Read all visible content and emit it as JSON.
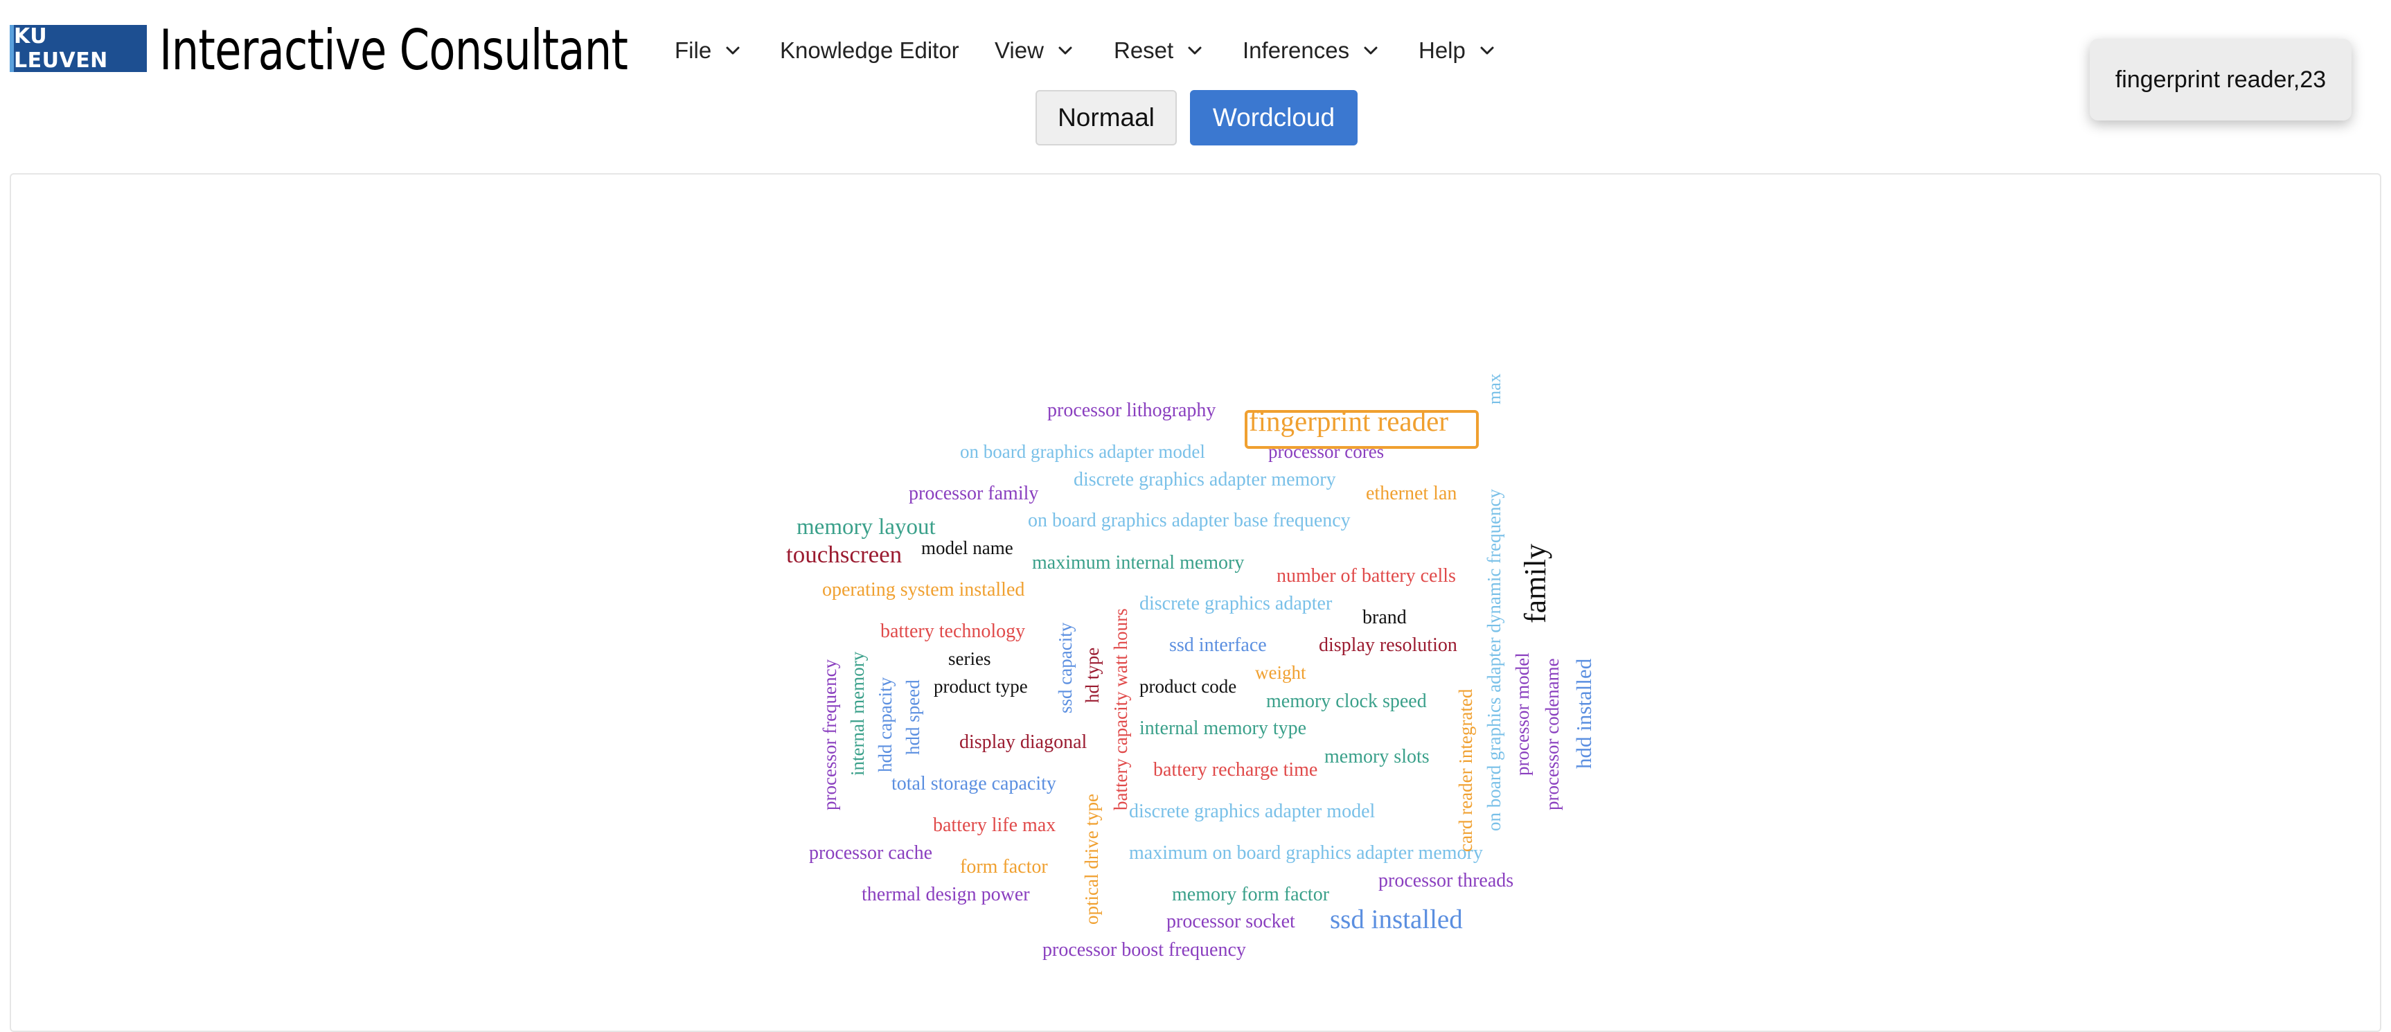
{
  "header": {
    "logo_text": "KU LEUVEN",
    "app_title": "Interactive Consultant"
  },
  "menu": {
    "file": "File",
    "knowledge_editor": "Knowledge Editor",
    "view": "View",
    "reset": "Reset",
    "inferences": "Inferences",
    "help": "Help"
  },
  "modes": {
    "normal": "Normaal",
    "wordcloud": "Wordcloud",
    "active": "wordcloud"
  },
  "tooltip": {
    "text": "fingerprint reader,23"
  },
  "colors": {
    "accent": "#3b78d0",
    "highlight": "#f0a030",
    "logo_bg": "#1d4f91"
  },
  "wordcloud": {
    "highlighted": "fingerprint reader",
    "words": [
      {
        "text": "processor lithography",
        "color": "#8a3fbf"
      },
      {
        "text": "fingerprint reader",
        "color": "#f0a030"
      },
      {
        "text": "max",
        "color": "#79c0e8"
      },
      {
        "text": "on board graphics adapter model",
        "color": "#79c0e8"
      },
      {
        "text": "processor cores",
        "color": "#8a3fbf"
      },
      {
        "text": "discrete graphics adapter memory",
        "color": "#79c0e8"
      },
      {
        "text": "processor family",
        "color": "#8a3fbf"
      },
      {
        "text": "ethernet lan",
        "color": "#f0a030"
      },
      {
        "text": "on board graphics adapter base frequency",
        "color": "#79c0e8"
      },
      {
        "text": "memory layout",
        "color": "#3aa08a"
      },
      {
        "text": "model name",
        "color": "#111111"
      },
      {
        "text": "touchscreen",
        "color": "#9b1b30"
      },
      {
        "text": "maximum internal memory",
        "color": "#3aa08a"
      },
      {
        "text": "number of battery cells",
        "color": "#e04a4a"
      },
      {
        "text": "operating system installed",
        "color": "#f0a030"
      },
      {
        "text": "discrete graphics adapter",
        "color": "#79c0e8"
      },
      {
        "text": "brand",
        "color": "#111111"
      },
      {
        "text": "family",
        "color": "#111111"
      },
      {
        "text": "battery technology",
        "color": "#e04a4a"
      },
      {
        "text": "ssd interface",
        "color": "#5b8fe0"
      },
      {
        "text": "display resolution",
        "color": "#9b1b30"
      },
      {
        "text": "series",
        "color": "#111111"
      },
      {
        "text": "weight",
        "color": "#f0a030"
      },
      {
        "text": "product type",
        "color": "#111111"
      },
      {
        "text": "product code",
        "color": "#111111"
      },
      {
        "text": "memory clock speed",
        "color": "#3aa08a"
      },
      {
        "text": "internal memory type",
        "color": "#3aa08a"
      },
      {
        "text": "display diagonal",
        "color": "#9b1b30"
      },
      {
        "text": "memory slots",
        "color": "#3aa08a"
      },
      {
        "text": "battery recharge time",
        "color": "#e04a4a"
      },
      {
        "text": "total storage capacity",
        "color": "#5b8fe0"
      },
      {
        "text": "discrete graphics adapter model",
        "color": "#79c0e8"
      },
      {
        "text": "battery life max",
        "color": "#e04a4a"
      },
      {
        "text": "processor cache",
        "color": "#8a3fbf"
      },
      {
        "text": "form factor",
        "color": "#f0a030"
      },
      {
        "text": "maximum on board graphics adapter memory",
        "color": "#79c0e8"
      },
      {
        "text": "processor threads",
        "color": "#8a3fbf"
      },
      {
        "text": "thermal design power",
        "color": "#8a3fbf"
      },
      {
        "text": "memory form factor",
        "color": "#3aa08a"
      },
      {
        "text": "processor socket",
        "color": "#8a3fbf"
      },
      {
        "text": "ssd installed",
        "color": "#5b8fe0"
      },
      {
        "text": "processor boost frequency",
        "color": "#8a3fbf"
      },
      {
        "text": "processor frequency",
        "color": "#8a3fbf"
      },
      {
        "text": "internal memory",
        "color": "#3aa08a"
      },
      {
        "text": "hdd capacity",
        "color": "#5b8fe0"
      },
      {
        "text": "hdd speed",
        "color": "#5b8fe0"
      },
      {
        "text": "ssd capacity",
        "color": "#5b8fe0"
      },
      {
        "text": "hd type",
        "color": "#9b1b30"
      },
      {
        "text": "battery capacity watt hours",
        "color": "#e04a4a"
      },
      {
        "text": "optical drive type",
        "color": "#f0a030"
      },
      {
        "text": "card reader integrated",
        "color": "#f0a030"
      },
      {
        "text": "on board graphics adapter dynamic frequency",
        "color": "#79c0e8"
      },
      {
        "text": "processor model",
        "color": "#8a3fbf"
      },
      {
        "text": "processor codename",
        "color": "#8a3fbf"
      },
      {
        "text": "hdd installed",
        "color": "#5b8fe0"
      }
    ]
  }
}
